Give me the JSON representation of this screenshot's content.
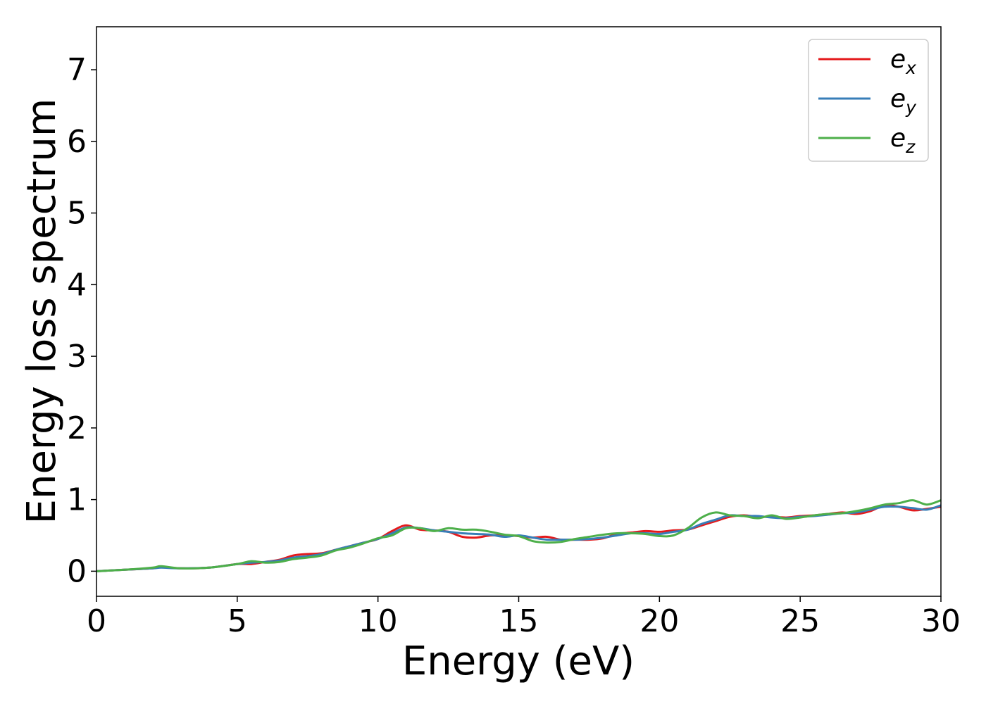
{
  "chart_data": {
    "type": "line",
    "xlabel": "Energy (eV)",
    "ylabel": "Energy loss spectrum",
    "xlim": [
      0,
      30
    ],
    "ylim": [
      -0.35,
      7.6
    ],
    "xticks": [
      0,
      5,
      10,
      15,
      20,
      25,
      30
    ],
    "yticks": [
      0,
      1,
      2,
      3,
      4,
      5,
      6,
      7
    ],
    "grid": false,
    "legend_position": "top-right",
    "series": [
      {
        "name": "e_x",
        "label_base": "e",
        "label_sub": "x",
        "color": "#e41a1c",
        "x": [
          0,
          1,
          2,
          2.3,
          3,
          4,
          5,
          5.5,
          6,
          6.5,
          7,
          7.5,
          8,
          8.5,
          9,
          9.5,
          10,
          10.5,
          11,
          11.5,
          12,
          12.5,
          13,
          13.5,
          14,
          14.5,
          15,
          15.5,
          16,
          16.5,
          17,
          17.5,
          18,
          18.5,
          19,
          19.5,
          20,
          20.5,
          21,
          21.5,
          22,
          22.5,
          23,
          23.5,
          24,
          24.5,
          25,
          25.5,
          26,
          26.5,
          27,
          27.5,
          28,
          28.5,
          29,
          29.5,
          30
        ],
        "y": [
          0.0,
          0.02,
          0.04,
          0.06,
          0.04,
          0.05,
          0.1,
          0.1,
          0.13,
          0.16,
          0.22,
          0.24,
          0.25,
          0.3,
          0.35,
          0.4,
          0.45,
          0.56,
          0.64,
          0.58,
          0.57,
          0.55,
          0.48,
          0.47,
          0.5,
          0.5,
          0.49,
          0.47,
          0.48,
          0.44,
          0.44,
          0.44,
          0.46,
          0.52,
          0.54,
          0.56,
          0.55,
          0.57,
          0.58,
          0.64,
          0.7,
          0.76,
          0.78,
          0.76,
          0.76,
          0.75,
          0.77,
          0.78,
          0.8,
          0.82,
          0.8,
          0.84,
          0.92,
          0.9,
          0.85,
          0.87,
          0.9
        ]
      },
      {
        "name": "e_y",
        "label_base": "e",
        "label_sub": "y",
        "color": "#377eb8",
        "x": [
          0,
          1,
          2,
          2.3,
          3,
          4,
          5,
          5.5,
          6,
          6.5,
          7,
          7.5,
          8,
          8.5,
          9,
          9.5,
          10,
          10.5,
          11,
          11.5,
          12,
          12.5,
          13,
          13.5,
          14,
          14.5,
          15,
          15.5,
          16,
          16.5,
          17,
          17.5,
          18,
          18.5,
          19,
          19.5,
          20,
          20.5,
          21,
          21.5,
          22,
          22.5,
          23,
          23.5,
          24,
          24.5,
          25,
          25.5,
          26,
          26.5,
          27,
          27.5,
          28,
          28.5,
          29,
          29.5,
          30
        ],
        "y": [
          0.0,
          0.02,
          0.04,
          0.05,
          0.04,
          0.05,
          0.1,
          0.12,
          0.13,
          0.15,
          0.19,
          0.21,
          0.24,
          0.3,
          0.35,
          0.4,
          0.45,
          0.53,
          0.61,
          0.6,
          0.57,
          0.55,
          0.53,
          0.52,
          0.51,
          0.48,
          0.5,
          0.47,
          0.44,
          0.44,
          0.44,
          0.45,
          0.47,
          0.5,
          0.53,
          0.53,
          0.52,
          0.55,
          0.58,
          0.66,
          0.72,
          0.78,
          0.77,
          0.77,
          0.75,
          0.74,
          0.76,
          0.77,
          0.79,
          0.81,
          0.82,
          0.86,
          0.9,
          0.9,
          0.88,
          0.86,
          0.92
        ]
      },
      {
        "name": "e_z",
        "label_base": "e",
        "label_sub": "z",
        "color": "#4daf4a",
        "x": [
          0,
          1,
          2,
          2.3,
          3,
          4,
          5,
          5.5,
          6,
          6.5,
          7,
          7.5,
          8,
          8.5,
          9,
          9.5,
          10,
          10.5,
          11,
          11.5,
          12,
          12.5,
          13,
          13.5,
          14,
          14.5,
          15,
          15.5,
          16,
          16.5,
          17,
          17.5,
          18,
          18.5,
          19,
          19.5,
          20,
          20.5,
          21,
          21.5,
          22,
          22.5,
          23,
          23.5,
          24,
          24.5,
          25,
          25.5,
          26,
          26.5,
          27,
          27.5,
          28,
          28.5,
          29,
          29.5,
          30
        ],
        "y": [
          0.0,
          0.02,
          0.05,
          0.07,
          0.04,
          0.05,
          0.1,
          0.14,
          0.12,
          0.13,
          0.17,
          0.19,
          0.22,
          0.29,
          0.33,
          0.39,
          0.46,
          0.5,
          0.6,
          0.6,
          0.56,
          0.6,
          0.58,
          0.58,
          0.55,
          0.51,
          0.49,
          0.42,
          0.4,
          0.41,
          0.45,
          0.48,
          0.51,
          0.53,
          0.53,
          0.52,
          0.49,
          0.5,
          0.6,
          0.75,
          0.82,
          0.78,
          0.77,
          0.74,
          0.78,
          0.73,
          0.75,
          0.78,
          0.8,
          0.81,
          0.84,
          0.88,
          0.93,
          0.95,
          0.99,
          0.93,
          0.99
        ]
      }
    ]
  }
}
